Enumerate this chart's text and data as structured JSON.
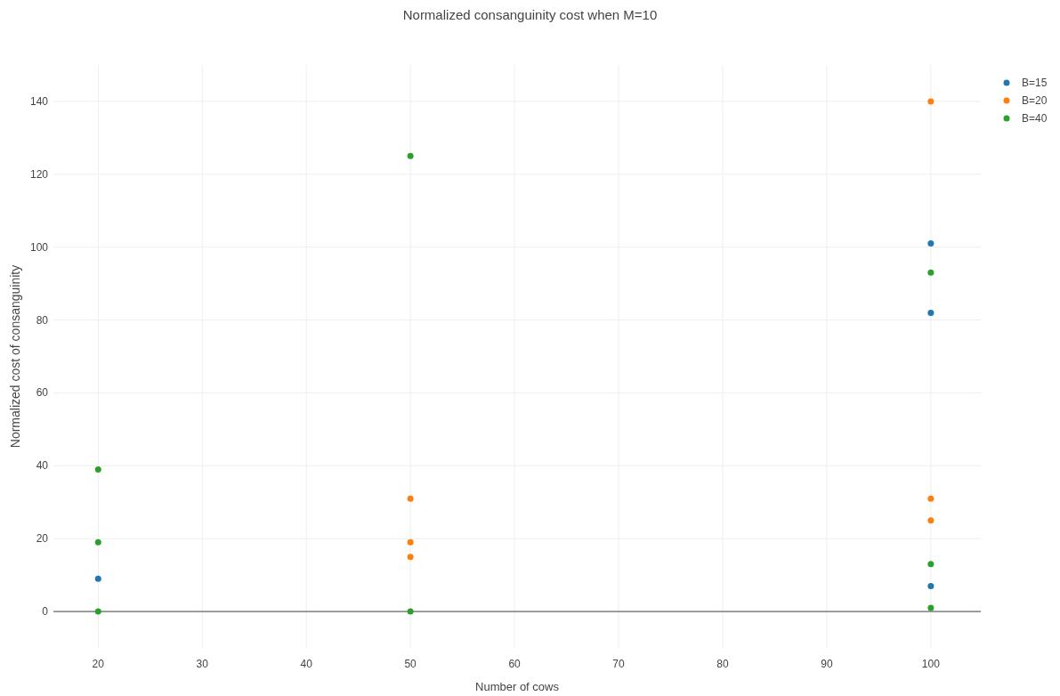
{
  "chart_data": {
    "type": "scatter",
    "title": "Normalized consanguinity cost when M=10",
    "xlabel": "Number of cows",
    "ylabel": "Normalized cost of consanguinity",
    "xlim": [
      15.7,
      104.8
    ],
    "ylim": [
      -10,
      150
    ],
    "xticks": [
      20,
      30,
      40,
      50,
      60,
      70,
      80,
      90,
      100
    ],
    "yticks": [
      0,
      20,
      40,
      60,
      80,
      100,
      120,
      140
    ],
    "grid": true,
    "legend": "top right",
    "marker": "circle",
    "series": [
      {
        "name": "B=15",
        "color": "#1f77b4",
        "x": [
          20,
          100,
          100,
          100
        ],
        "values": [
          9,
          101,
          82,
          7
        ]
      },
      {
        "name": "B=20",
        "color": "#ff7f0e",
        "x": [
          50,
          50,
          50,
          100,
          100,
          100
        ],
        "values": [
          31,
          19,
          15,
          140,
          31,
          25
        ]
      },
      {
        "name": "B=40",
        "color": "#2ca02c",
        "x": [
          20,
          20,
          20,
          50,
          50,
          100,
          100,
          100
        ],
        "values": [
          39,
          19,
          0,
          125,
          0,
          93,
          13,
          1
        ]
      }
    ]
  }
}
